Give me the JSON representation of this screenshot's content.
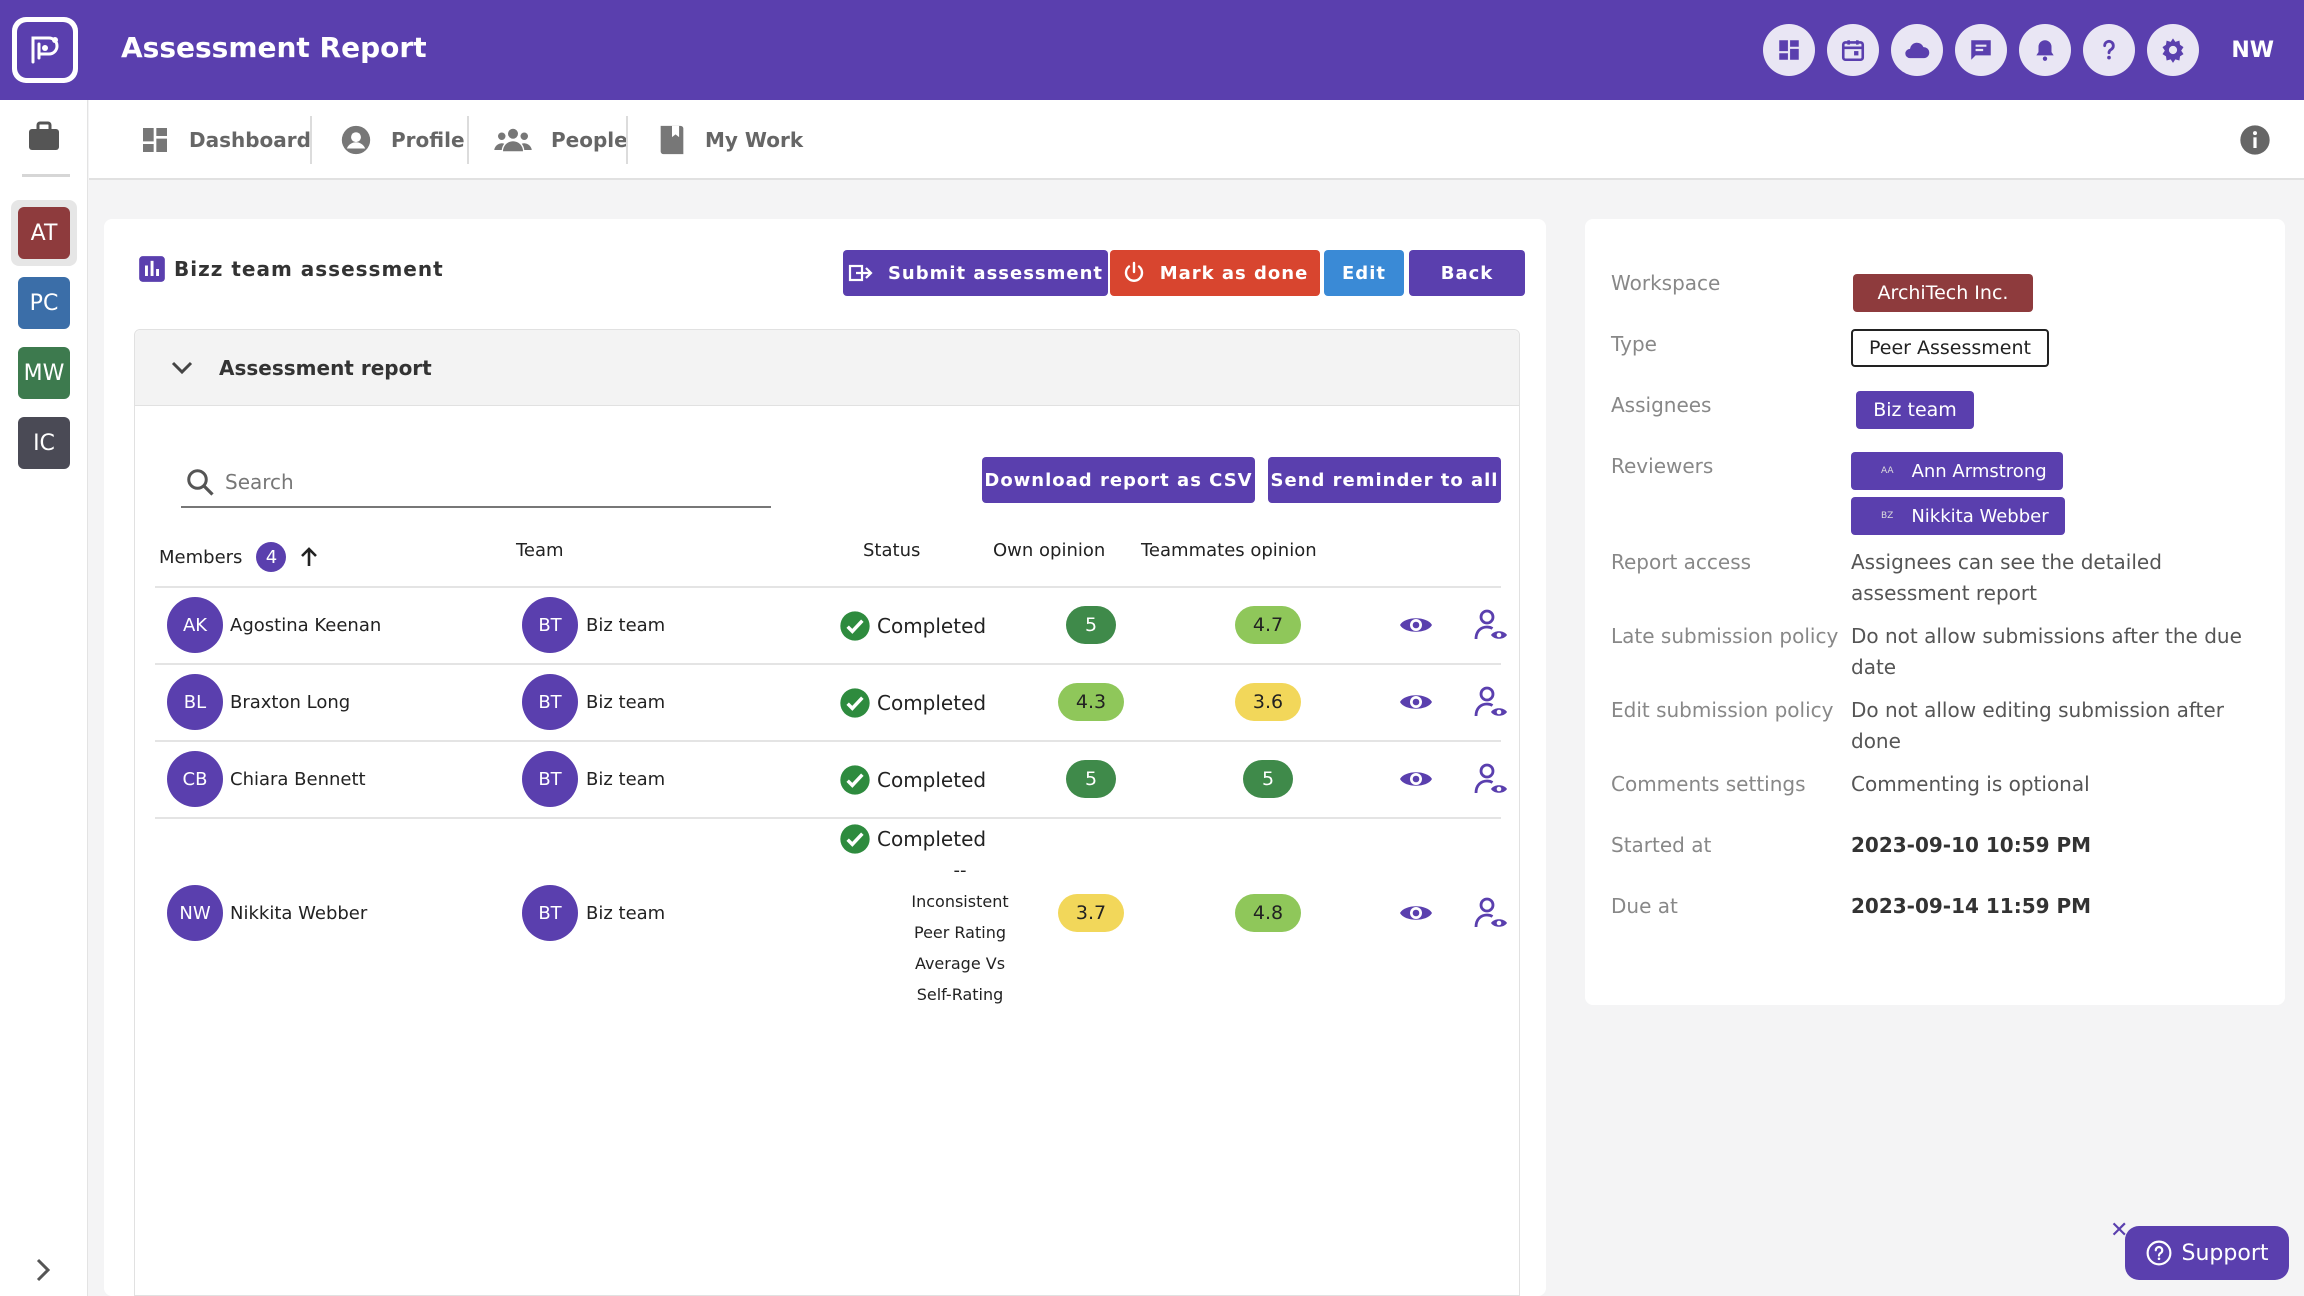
{
  "app": {
    "title": "Assessment Report",
    "user_initials": "NW"
  },
  "workspaces": [
    {
      "initials": "AT",
      "color": "#8e3b3d"
    },
    {
      "initials": "PC",
      "color": "#3b6ea8"
    },
    {
      "initials": "MW",
      "color": "#3d7a4e"
    },
    {
      "initials": "IC",
      "color": "#4a4a55"
    }
  ],
  "nav": {
    "dashboard": "Dashboard",
    "profile": "Profile",
    "people": "People",
    "my_work": "My Work"
  },
  "card": {
    "title": "Bizz team assessment",
    "submit_label": "Submit assessment",
    "mark_done_label": "Mark as done",
    "edit_label": "Edit",
    "back_label": "Back"
  },
  "report": {
    "section_title": "Assessment report",
    "search_placeholder": "Search",
    "download_label": "Download report as CSV",
    "reminder_label": "Send reminder to all"
  },
  "table": {
    "headers": {
      "members": "Members",
      "team": "Team",
      "status": "Status",
      "own": "Own opinion",
      "mates": "Teammates opinion"
    },
    "member_count": "4",
    "rows": [
      {
        "initials": "AK",
        "name": "Agostina Keenan",
        "team_initials": "BT",
        "team": "Biz team",
        "status": "Completed",
        "own": "5",
        "own_color": "#3f8a4a",
        "mates": "4.7",
        "mates_color": "#8fc75a"
      },
      {
        "initials": "BL",
        "name": "Braxton Long",
        "team_initials": "BT",
        "team": "Biz team",
        "status": "Completed",
        "own": "4.3",
        "own_color": "#8fc75a",
        "mates": "3.6",
        "mates_color": "#f2d75a"
      },
      {
        "initials": "CB",
        "name": "Chiara Bennett",
        "team_initials": "BT",
        "team": "Biz team",
        "status": "Completed",
        "own": "5",
        "own_color": "#3f8a4a",
        "mates": "5",
        "mates_color": "#3f8a4a"
      },
      {
        "initials": "NW",
        "name": "Nikkita Webber",
        "team_initials": "BT",
        "team": "Biz team",
        "status": "Completed",
        "status_dash": "--",
        "status_note": [
          "Inconsistent",
          "Peer Rating",
          "Average Vs",
          "Self-Rating"
        ],
        "own": "3.7",
        "own_color": "#f2d75a",
        "mates": "4.8",
        "mates_color": "#8fc75a"
      }
    ]
  },
  "details": {
    "workspace_label": "Workspace",
    "workspace": "ArchiTech Inc.",
    "type_label": "Type",
    "type": "Peer Assessment",
    "assignees_label": "Assignees",
    "assignee": "Biz team",
    "reviewers_label": "Reviewers",
    "reviewers": [
      {
        "mini": "AA",
        "name": "Ann Armstrong"
      },
      {
        "mini": "BZ",
        "name": "Nikkita Webber"
      }
    ],
    "report_access_label": "Report access",
    "report_access": "Assignees can see the detailed assessment report",
    "late_label": "Late submission policy",
    "late": "Do not allow submissions after the due date",
    "edit_label": "Edit submission policy",
    "edit": "Do not allow editing submission after done",
    "comments_label": "Comments settings",
    "comments": "Commenting is optional",
    "started_label": "Started at",
    "started": "2023-09-10 10:59 PM",
    "due_label": "Due at",
    "due": "2023-09-14 11:59 PM"
  },
  "support": {
    "label": "Support"
  },
  "colors": {
    "primary": "#5a3fae",
    "danger": "#d8452f",
    "info": "#3a8ad6",
    "workspace_chip": "#8e3b3d",
    "success_check": "#2e8b3e"
  }
}
